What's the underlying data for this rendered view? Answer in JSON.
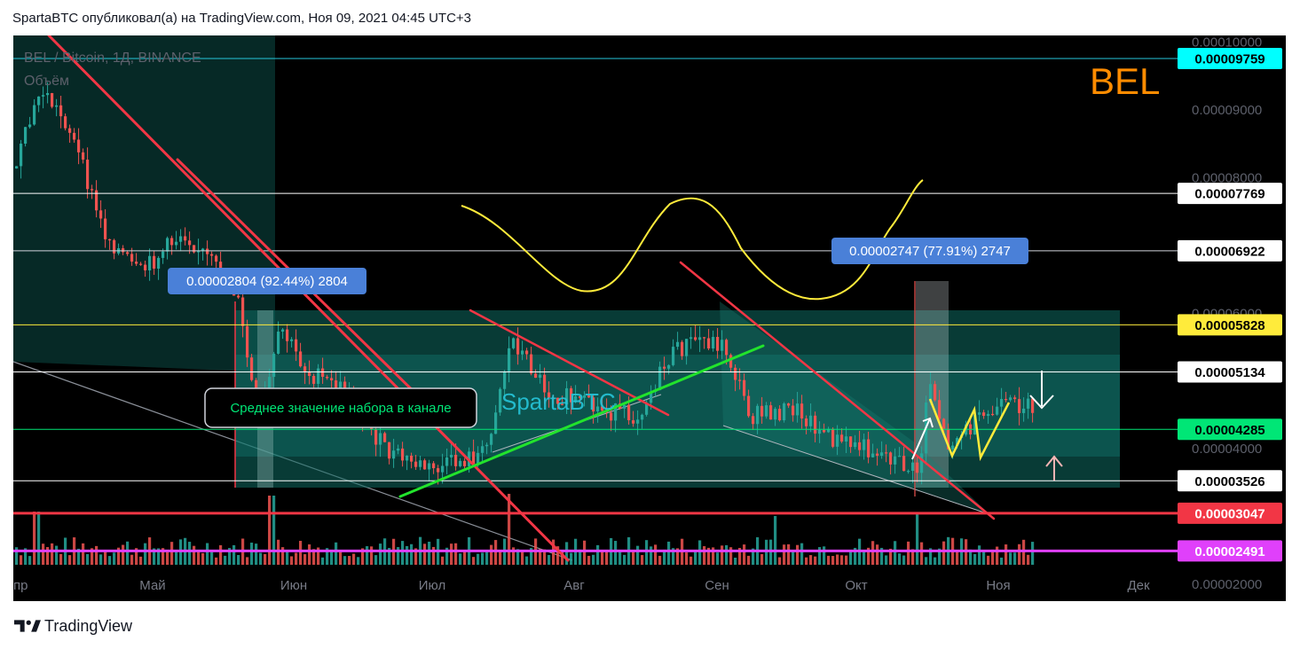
{
  "header": {
    "publish_line": "SpartaBTC опубликовал(а) на TradingView.com, Ноя 09, 2021 04:45 UTC+3"
  },
  "footer": {
    "brand": "TradingView",
    "logo_icon": "tradingview-logo-icon"
  },
  "colors": {
    "background": "#000000",
    "channel_fill": "#0e6b63",
    "trendline": "#f23645",
    "support": "#f23645",
    "magenta": "#e040fb",
    "yellow": "#ffeb3b",
    "green": "#00e676",
    "label_blue": "#4a80d8",
    "cyan_label": "#00ffff"
  },
  "chart_data": {
    "type": "candlestick",
    "symbol_line": "BEL / Bitcoin, 1Д, BINANCE",
    "volume_label": "Объём",
    "ticker_badge": "BEL",
    "watermark": "SpartaBTC",
    "x_ticks": [
      "пр",
      "Май",
      "Июн",
      "Июл",
      "Авг",
      "Сен",
      "Окт",
      "Ноя",
      "Дек"
    ],
    "y_range": [
      1.75e-05,
      0.000101
    ],
    "y_ticks": [
      "0.00010000",
      "0.00009000",
      "0.00008000",
      "0.00006000",
      "0.00004000",
      "0.00002000"
    ],
    "y_tick_values": [
      0.0001,
      9e-05,
      8e-05,
      6e-05,
      4e-05,
      2e-05
    ],
    "levels": [
      {
        "value": "0.00009759",
        "num": 9.759e-05,
        "line": "#26c6da",
        "bg": "#00ffff",
        "fg": "#000000"
      },
      {
        "value": "0.00007769",
        "num": 7.769e-05,
        "line": "#ffffff",
        "bg": "#ffffff",
        "fg": "#000000"
      },
      {
        "value": "0.00006922",
        "num": 6.922e-05,
        "line": "#d1d4dc",
        "bg": "#ffffff",
        "fg": "#000000"
      },
      {
        "value": "0.00005828",
        "num": 5.828e-05,
        "line": "#ffeb3b",
        "bg": "#ffeb3b",
        "fg": "#000000"
      },
      {
        "value": "0.00005134",
        "num": 5.134e-05,
        "line": "#ffffff",
        "bg": "#ffffff",
        "fg": "#000000"
      },
      {
        "value": "0.00004285",
        "num": 4.285e-05,
        "line": "#00e676",
        "bg": "#00e676",
        "fg": "#000000"
      },
      {
        "value": "0.00003526",
        "num": 3.526e-05,
        "line": "#ffffff",
        "bg": "#ffffff",
        "fg": "#000000"
      },
      {
        "value": "0.00003047",
        "num": 3.047e-05,
        "line": "#f23645",
        "bg": "#f23645",
        "fg": "#ffffff"
      },
      {
        "value": "0.00002491",
        "num": 2.491e-05,
        "line": "#e040fb",
        "bg": "#e040fb",
        "fg": "#ffffff"
      }
    ],
    "annotations": {
      "measure_left": "0.00002804 (92.44%) 2804",
      "measure_right": "0.00002747 (77.91%) 2747",
      "channel_note": "Среднее значение набора в канале"
    },
    "grid": false
  }
}
